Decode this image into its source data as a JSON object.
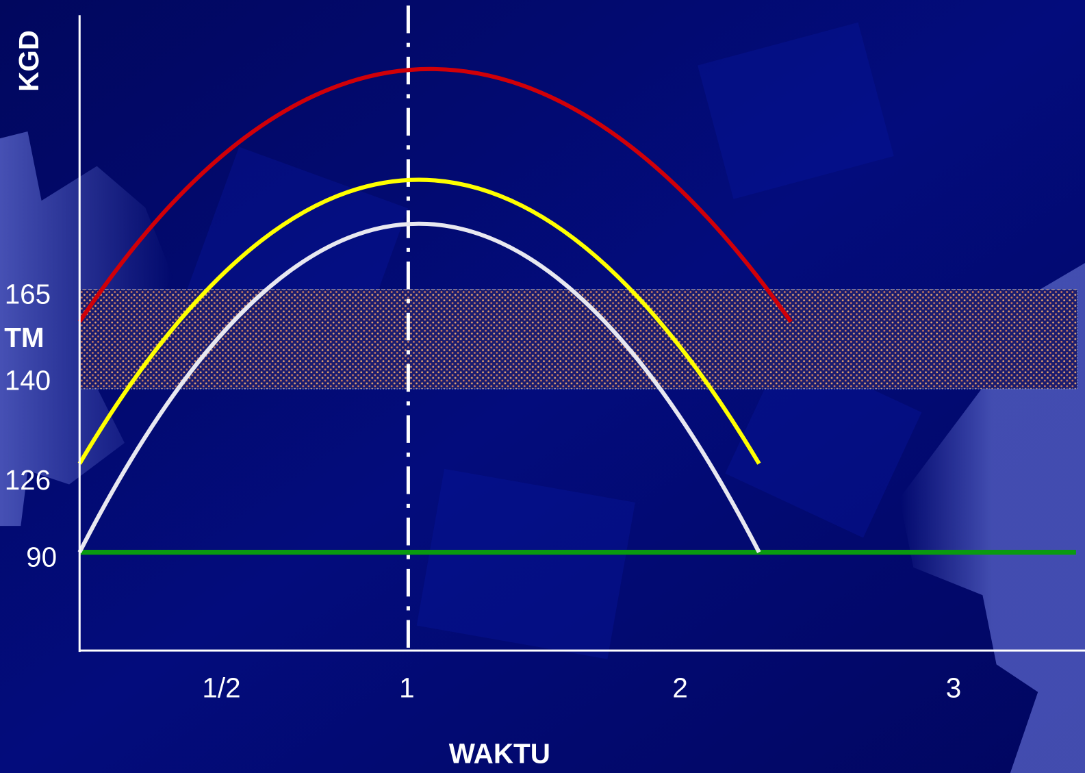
{
  "y_axis": {
    "title": "KGD",
    "labels": [
      "165",
      "TM",
      "140",
      "126",
      "90"
    ]
  },
  "x_axis": {
    "title": "WAKTU",
    "labels": [
      "1/2",
      "1",
      "2",
      "3"
    ]
  }
}
